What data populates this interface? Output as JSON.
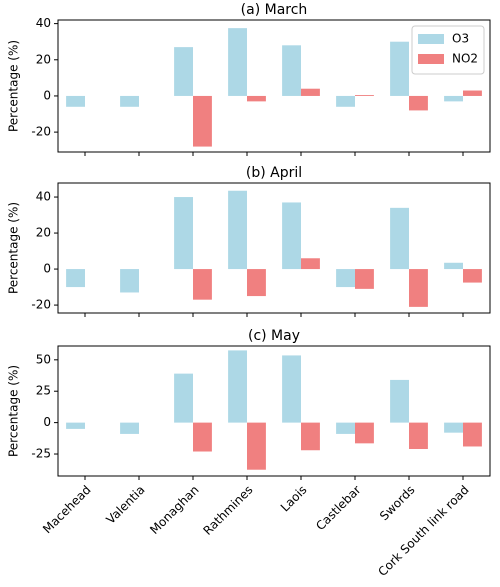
{
  "chart_data": [
    {
      "type": "bar",
      "title": "(a) March",
      "y_label": "Percentage (%)",
      "series": [
        {
          "name": "O3",
          "color": "#add8e6",
          "values": [
            -6,
            -6,
            27,
            37.5,
            28,
            -6,
            30,
            -3
          ]
        },
        {
          "name": "NO2",
          "color": "#f08080",
          "values": [
            0,
            0,
            -28,
            -3,
            4,
            0.5,
            -8,
            3
          ]
        }
      ],
      "ylim": [
        -31,
        42
      ],
      "yticks": [
        -20,
        0,
        20,
        40
      ],
      "legend": "upper right"
    },
    {
      "type": "bar",
      "title": "(b) April",
      "y_label": "Percentage (%)",
      "series": [
        {
          "color": "#add8e6",
          "values": [
            -10,
            -13,
            40,
            43.5,
            37,
            -10,
            34,
            3.5
          ]
        },
        {
          "color": "#f08080",
          "values": [
            0,
            0,
            -17,
            -15,
            6,
            -11,
            -21,
            -7.5
          ]
        }
      ],
      "ylim": [
        -24.4,
        47.8
      ],
      "yticks": [
        -20,
        0,
        20,
        40
      ]
    },
    {
      "type": "bar",
      "title": "(c) May",
      "y_label": "Percentage (%)",
      "categories": [
        "Macehead",
        "Valentia",
        "Monaghan",
        "Rathmines",
        "Laois",
        "Castlebar",
        "Swords",
        "Cork South link road"
      ],
      "series": [
        {
          "color": "#add8e6",
          "values": [
            -5,
            -9,
            39,
            57.5,
            53.5,
            -9,
            34,
            -8
          ]
        },
        {
          "color": "#f08080",
          "values": [
            0,
            0,
            -23,
            -37.5,
            -22,
            -16.5,
            -21,
            -19
          ]
        }
      ],
      "ylim": [
        -42.5,
        61
      ],
      "yticks": [
        -25,
        0,
        25,
        50
      ]
    }
  ]
}
